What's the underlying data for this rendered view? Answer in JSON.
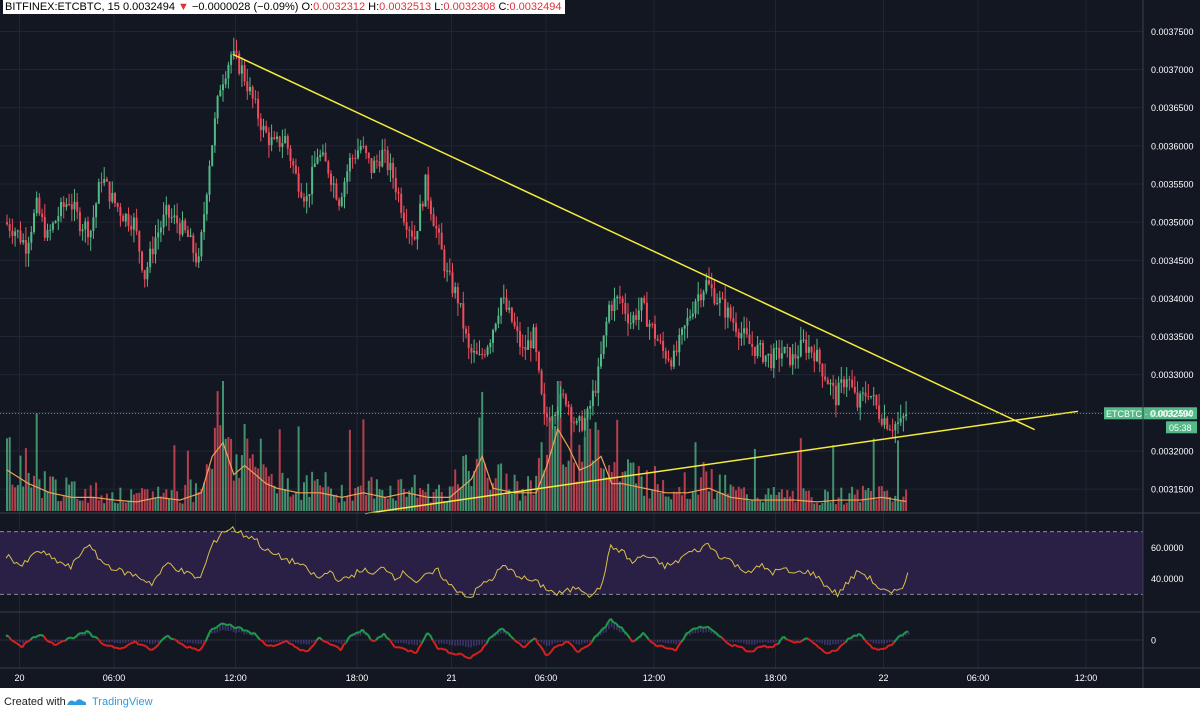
{
  "header": {
    "symbol": "BITFINEX:ETCBTC, 15",
    "last": "0.0032494",
    "change_arrow": "▼",
    "change": "−0.0000028 (−0.09%)",
    "o_label": "O:",
    "o": "0.0032312",
    "h_label": "H:",
    "h": "0.0032513",
    "l_label": "L:",
    "l": "0.0032308",
    "c_label": "C:",
    "c": "0.0032494"
  },
  "footer": {
    "created": "Created with",
    "brand": "TradingView"
  },
  "colors": {
    "background": "#131722",
    "up": "#53b987",
    "down": "#eb4d5c",
    "trendline": "#f5eb3b",
    "volume_ma": "#f0a055",
    "rsi": "#d8c04a",
    "rsi_band": "#2a1f45",
    "macd_up": "#1f9a4a",
    "macd_down": "#d9201f",
    "price_label_bg": "#53b987"
  },
  "chart_data": {
    "type": "candlestick",
    "symbol": "ETCBTC",
    "exchange": "BITFINEX",
    "interval": "15",
    "last_price_label": "ETCBTC · 0.0032494",
    "countdown": "05:38",
    "price_axis_ticks": [
      "0.0037500",
      "0.0037000",
      "0.0036500",
      "0.0036000",
      "0.0035500",
      "0.0035000",
      "0.0034500",
      "0.0034000",
      "0.0033500",
      "0.0033000",
      "0.0032500",
      "0.0032000",
      "0.0031500"
    ],
    "time_axis_ticks": [
      "20",
      "06:00",
      "12:00",
      "18:00",
      "21",
      "06:00",
      "12:00",
      "18:00",
      "22",
      "06:00",
      "12:00"
    ],
    "ylim": [
      0.00312,
      0.003765
    ],
    "grid": true,
    "close_path": [
      [
        0,
        0.0035
      ],
      [
        4,
        0.00349
      ],
      [
        8,
        0.00347
      ],
      [
        12,
        0.00352
      ],
      [
        16,
        0.00348
      ],
      [
        20,
        0.00351
      ],
      [
        24,
        0.00353
      ],
      [
        28,
        0.0035
      ],
      [
        32,
        0.00349
      ],
      [
        36,
        0.00356
      ],
      [
        40,
        0.00353
      ],
      [
        44,
        0.00351
      ],
      [
        48,
        0.0035
      ],
      [
        52,
        0.00343
      ],
      [
        56,
        0.00348
      ],
      [
        60,
        0.00351
      ],
      [
        64,
        0.0035
      ],
      [
        68,
        0.00348
      ],
      [
        72,
        0.003445
      ],
      [
        76,
        0.00358
      ],
      [
        80,
        0.00368
      ],
      [
        84,
        0.00372
      ],
      [
        88,
        0.0037
      ],
      [
        92,
        0.00366
      ],
      [
        96,
        0.00362
      ],
      [
        100,
        0.0036
      ],
      [
        104,
        0.00361
      ],
      [
        108,
        0.00356
      ],
      [
        112,
        0.00353
      ],
      [
        116,
        0.00359
      ],
      [
        120,
        0.00357
      ],
      [
        124,
        0.00353
      ],
      [
        128,
        0.00358
      ],
      [
        132,
        0.0036
      ],
      [
        136,
        0.00357
      ],
      [
        140,
        0.00359
      ],
      [
        144,
        0.00356
      ],
      [
        148,
        0.00351
      ],
      [
        152,
        0.00348
      ],
      [
        156,
        0.00355
      ],
      [
        160,
        0.00349
      ],
      [
        164,
        0.00343
      ],
      [
        168,
        0.0034
      ],
      [
        172,
        0.00333
      ],
      [
        176,
        0.00332
      ],
      [
        180,
        0.00335
      ],
      [
        184,
        0.0034
      ],
      [
        188,
        0.00337
      ],
      [
        192,
        0.00333
      ],
      [
        196,
        0.00335
      ],
      [
        200,
        0.00324
      ],
      [
        204,
        0.00326
      ],
      [
        208,
        0.00327
      ],
      [
        212,
        0.00323
      ],
      [
        216,
        0.003245
      ],
      [
        220,
        0.0033
      ],
      [
        224,
        0.00339
      ],
      [
        228,
        0.0034
      ],
      [
        232,
        0.00337
      ],
      [
        236,
        0.00339
      ],
      [
        240,
        0.00336
      ],
      [
        244,
        0.00333
      ],
      [
        248,
        0.00332
      ],
      [
        252,
        0.00336
      ],
      [
        256,
        0.0034
      ],
      [
        260,
        0.00342
      ],
      [
        264,
        0.0034
      ],
      [
        268,
        0.00338
      ],
      [
        272,
        0.00336
      ],
      [
        276,
        0.00334
      ],
      [
        280,
        0.00333
      ],
      [
        284,
        0.00332
      ],
      [
        288,
        0.00333
      ],
      [
        292,
        0.00332
      ],
      [
        296,
        0.00334
      ],
      [
        300,
        0.00333
      ],
      [
        304,
        0.0033
      ],
      [
        308,
        0.00327
      ],
      [
        312,
        0.0033
      ],
      [
        316,
        0.00326
      ],
      [
        320,
        0.00328
      ],
      [
        324,
        0.00325
      ],
      [
        328,
        0.003235
      ],
      [
        332,
        0.003235
      ],
      [
        334,
        0.003249
      ]
    ],
    "volume_profile": [
      [
        0,
        0.45
      ],
      [
        8,
        0.3
      ],
      [
        16,
        0.2
      ],
      [
        24,
        0.15
      ],
      [
        32,
        0.15
      ],
      [
        40,
        0.12
      ],
      [
        48,
        0.1
      ],
      [
        56,
        0.15
      ],
      [
        64,
        0.12
      ],
      [
        72,
        0.2
      ],
      [
        76,
        0.6
      ],
      [
        80,
        0.75
      ],
      [
        84,
        0.4
      ],
      [
        88,
        0.5
      ],
      [
        92,
        0.4
      ],
      [
        96,
        0.3
      ],
      [
        100,
        0.25
      ],
      [
        108,
        0.2
      ],
      [
        116,
        0.2
      ],
      [
        124,
        0.15
      ],
      [
        132,
        0.2
      ],
      [
        140,
        0.15
      ],
      [
        148,
        0.2
      ],
      [
        156,
        0.15
      ],
      [
        164,
        0.15
      ],
      [
        172,
        0.35
      ],
      [
        176,
        0.6
      ],
      [
        180,
        0.25
      ],
      [
        188,
        0.2
      ],
      [
        196,
        0.2
      ],
      [
        200,
        0.5
      ],
      [
        204,
        0.9
      ],
      [
        208,
        0.7
      ],
      [
        212,
        0.45
      ],
      [
        216,
        0.5
      ],
      [
        220,
        0.6
      ],
      [
        224,
        0.3
      ],
      [
        228,
        0.3
      ],
      [
        236,
        0.25
      ],
      [
        244,
        0.2
      ],
      [
        252,
        0.2
      ],
      [
        260,
        0.25
      ],
      [
        268,
        0.15
      ],
      [
        276,
        0.12
      ],
      [
        284,
        0.12
      ],
      [
        292,
        0.12
      ],
      [
        300,
        0.1
      ],
      [
        308,
        0.12
      ],
      [
        316,
        0.12
      ],
      [
        324,
        0.15
      ],
      [
        330,
        0.12
      ],
      [
        334,
        0.1
      ]
    ],
    "rsi": {
      "ticks": [
        "60.0000",
        "40.0000"
      ],
      "band": [
        30,
        70
      ],
      "path": [
        [
          0,
          55
        ],
        [
          6,
          48
        ],
        [
          12,
          58
        ],
        [
          18,
          52
        ],
        [
          24,
          47
        ],
        [
          30,
          62
        ],
        [
          36,
          50
        ],
        [
          42,
          45
        ],
        [
          48,
          42
        ],
        [
          54,
          37
        ],
        [
          60,
          50
        ],
        [
          66,
          44
        ],
        [
          72,
          40
        ],
        [
          76,
          60
        ],
        [
          80,
          70
        ],
        [
          84,
          72
        ],
        [
          88,
          68
        ],
        [
          92,
          66
        ],
        [
          96,
          58
        ],
        [
          100,
          55
        ],
        [
          104,
          52
        ],
        [
          108,
          50
        ],
        [
          112,
          45
        ],
        [
          116,
          40
        ],
        [
          120,
          45
        ],
        [
          124,
          38
        ],
        [
          128,
          42
        ],
        [
          132,
          46
        ],
        [
          136,
          42
        ],
        [
          140,
          48
        ],
        [
          144,
          41
        ],
        [
          148,
          44
        ],
        [
          152,
          38
        ],
        [
          156,
          42
        ],
        [
          160,
          45
        ],
        [
          164,
          36
        ],
        [
          168,
          32
        ],
        [
          172,
          28
        ],
        [
          176,
          36
        ],
        [
          180,
          40
        ],
        [
          184,
          48
        ],
        [
          188,
          44
        ],
        [
          192,
          40
        ],
        [
          196,
          38
        ],
        [
          200,
          34
        ],
        [
          204,
          30
        ],
        [
          208,
          32
        ],
        [
          212,
          35
        ],
        [
          216,
          30
        ],
        [
          220,
          33
        ],
        [
          224,
          60
        ],
        [
          228,
          58
        ],
        [
          232,
          50
        ],
        [
          236,
          55
        ],
        [
          240,
          52
        ],
        [
          244,
          48
        ],
        [
          248,
          50
        ],
        [
          252,
          56
        ],
        [
          256,
          58
        ],
        [
          260,
          62
        ],
        [
          264,
          55
        ],
        [
          268,
          52
        ],
        [
          272,
          46
        ],
        [
          276,
          45
        ],
        [
          280,
          48
        ],
        [
          284,
          44
        ],
        [
          288,
          46
        ],
        [
          292,
          43
        ],
        [
          296,
          45
        ],
        [
          300,
          42
        ],
        [
          304,
          35
        ],
        [
          308,
          30
        ],
        [
          312,
          38
        ],
        [
          316,
          45
        ],
        [
          320,
          40
        ],
        [
          324,
          33
        ],
        [
          328,
          30
        ],
        [
          332,
          35
        ],
        [
          334,
          44
        ]
      ]
    },
    "macd": {
      "ticks": [
        "0"
      ],
      "path": [
        [
          0,
          0.2
        ],
        [
          6,
          -0.3
        ],
        [
          12,
          0.3
        ],
        [
          18,
          -0.2
        ],
        [
          24,
          0.1
        ],
        [
          30,
          0.4
        ],
        [
          36,
          -0.2
        ],
        [
          42,
          -0.4
        ],
        [
          48,
          -0.1
        ],
        [
          54,
          -0.5
        ],
        [
          60,
          0.2
        ],
        [
          66,
          -0.3
        ],
        [
          72,
          -0.5
        ],
        [
          76,
          0.5
        ],
        [
          80,
          0.9
        ],
        [
          84,
          0.7
        ],
        [
          88,
          0.5
        ],
        [
          92,
          0.3
        ],
        [
          96,
          -0.2
        ],
        [
          100,
          -0.3
        ],
        [
          104,
          -0.1
        ],
        [
          108,
          -0.4
        ],
        [
          112,
          -0.6
        ],
        [
          116,
          0.1
        ],
        [
          120,
          -0.2
        ],
        [
          124,
          -0.5
        ],
        [
          128,
          0.3
        ],
        [
          132,
          0.5
        ],
        [
          136,
          -0.1
        ],
        [
          140,
          0.3
        ],
        [
          144,
          -0.3
        ],
        [
          148,
          -0.5
        ],
        [
          152,
          -0.6
        ],
        [
          156,
          0.4
        ],
        [
          160,
          -0.4
        ],
        [
          164,
          -0.6
        ],
        [
          168,
          -0.7
        ],
        [
          172,
          -0.9
        ],
        [
          176,
          -0.5
        ],
        [
          180,
          0.2
        ],
        [
          184,
          0.6
        ],
        [
          188,
          0.1
        ],
        [
          192,
          -0.4
        ],
        [
          196,
          0.1
        ],
        [
          200,
          -0.8
        ],
        [
          204,
          -0.3
        ],
        [
          208,
          -0.1
        ],
        [
          212,
          -0.6
        ],
        [
          216,
          -0.2
        ],
        [
          220,
          0.4
        ],
        [
          224,
          1.0
        ],
        [
          228,
          0.6
        ],
        [
          232,
          -0.1
        ],
        [
          236,
          0.3
        ],
        [
          240,
          -0.2
        ],
        [
          244,
          -0.4
        ],
        [
          248,
          -0.5
        ],
        [
          252,
          0.3
        ],
        [
          256,
          0.6
        ],
        [
          260,
          0.7
        ],
        [
          264,
          0.2
        ],
        [
          268,
          -0.2
        ],
        [
          272,
          -0.4
        ],
        [
          276,
          -0.6
        ],
        [
          280,
          -0.3
        ],
        [
          284,
          -0.4
        ],
        [
          288,
          0.1
        ],
        [
          292,
          -0.2
        ],
        [
          296,
          0.1
        ],
        [
          300,
          -0.3
        ],
        [
          304,
          -0.7
        ],
        [
          308,
          -0.5
        ],
        [
          312,
          0.1
        ],
        [
          316,
          0.3
        ],
        [
          320,
          -0.3
        ],
        [
          324,
          -0.5
        ],
        [
          328,
          -0.2
        ],
        [
          332,
          0.3
        ],
        [
          334,
          0.5
        ]
      ]
    },
    "trendlines": [
      {
        "name": "descending",
        "from": [
          84,
          0.00372
        ],
        "to": [
          381,
          0.003228
        ]
      },
      {
        "name": "ascending",
        "from": [
          133,
          0.003118
        ],
        "to": [
          397,
          0.003252
        ]
      }
    ]
  }
}
